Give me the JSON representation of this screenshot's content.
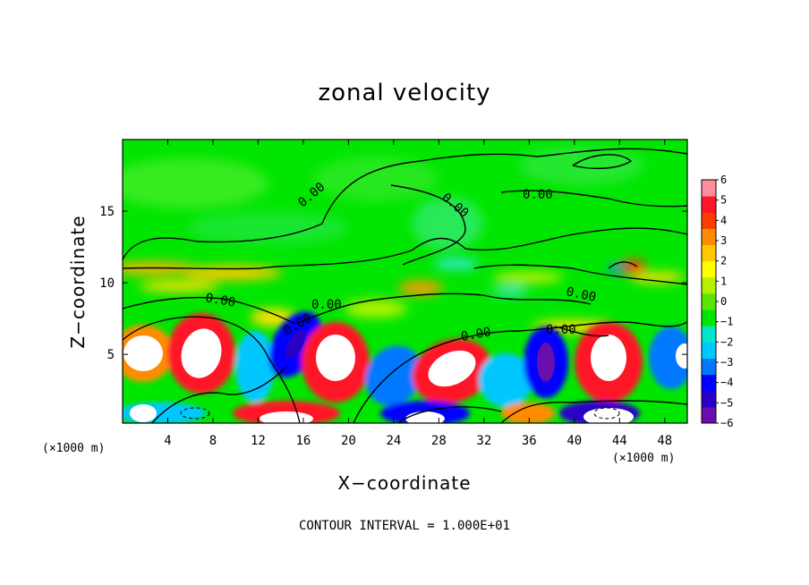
{
  "chart_data": {
    "type": "heatmap",
    "title": "zonal velocity",
    "xlabel": "X−coordinate",
    "ylabel": "Z−coordinate",
    "x_unit_label": "(×1000 m)",
    "y_unit_label": "(×1000 m)",
    "xlim": [
      0,
      50
    ],
    "ylim": [
      0.2,
      20
    ],
    "x_ticks": [
      4,
      8,
      12,
      16,
      20,
      24,
      28,
      32,
      36,
      40,
      44,
      48
    ],
    "y_ticks": [
      5,
      10,
      15
    ],
    "colorbar": {
      "min": -6,
      "max": 6,
      "ticks": [
        6,
        5,
        4,
        3,
        2,
        1,
        0,
        -1,
        -2,
        -3,
        -4,
        -5,
        -6
      ],
      "colors": [
        "#6a0dad",
        "#2a00c8",
        "#0000ff",
        "#0078ff",
        "#00c8ff",
        "#00e6c8",
        "#00e600",
        "#5ae600",
        "#b4f000",
        "#ffff00",
        "#ffc800",
        "#ff8c00",
        "#ff3c00",
        "#ff1428",
        "#ff8c9b"
      ]
    },
    "contour_labels": [
      "0.00",
      "0.00",
      "0.00",
      "0.00",
      "0.00",
      "0.00",
      "0.00",
      "0.00",
      "0.00",
      "0.00"
    ],
    "footer": "CONTOUR INTERVAL = 1.000E+01"
  }
}
